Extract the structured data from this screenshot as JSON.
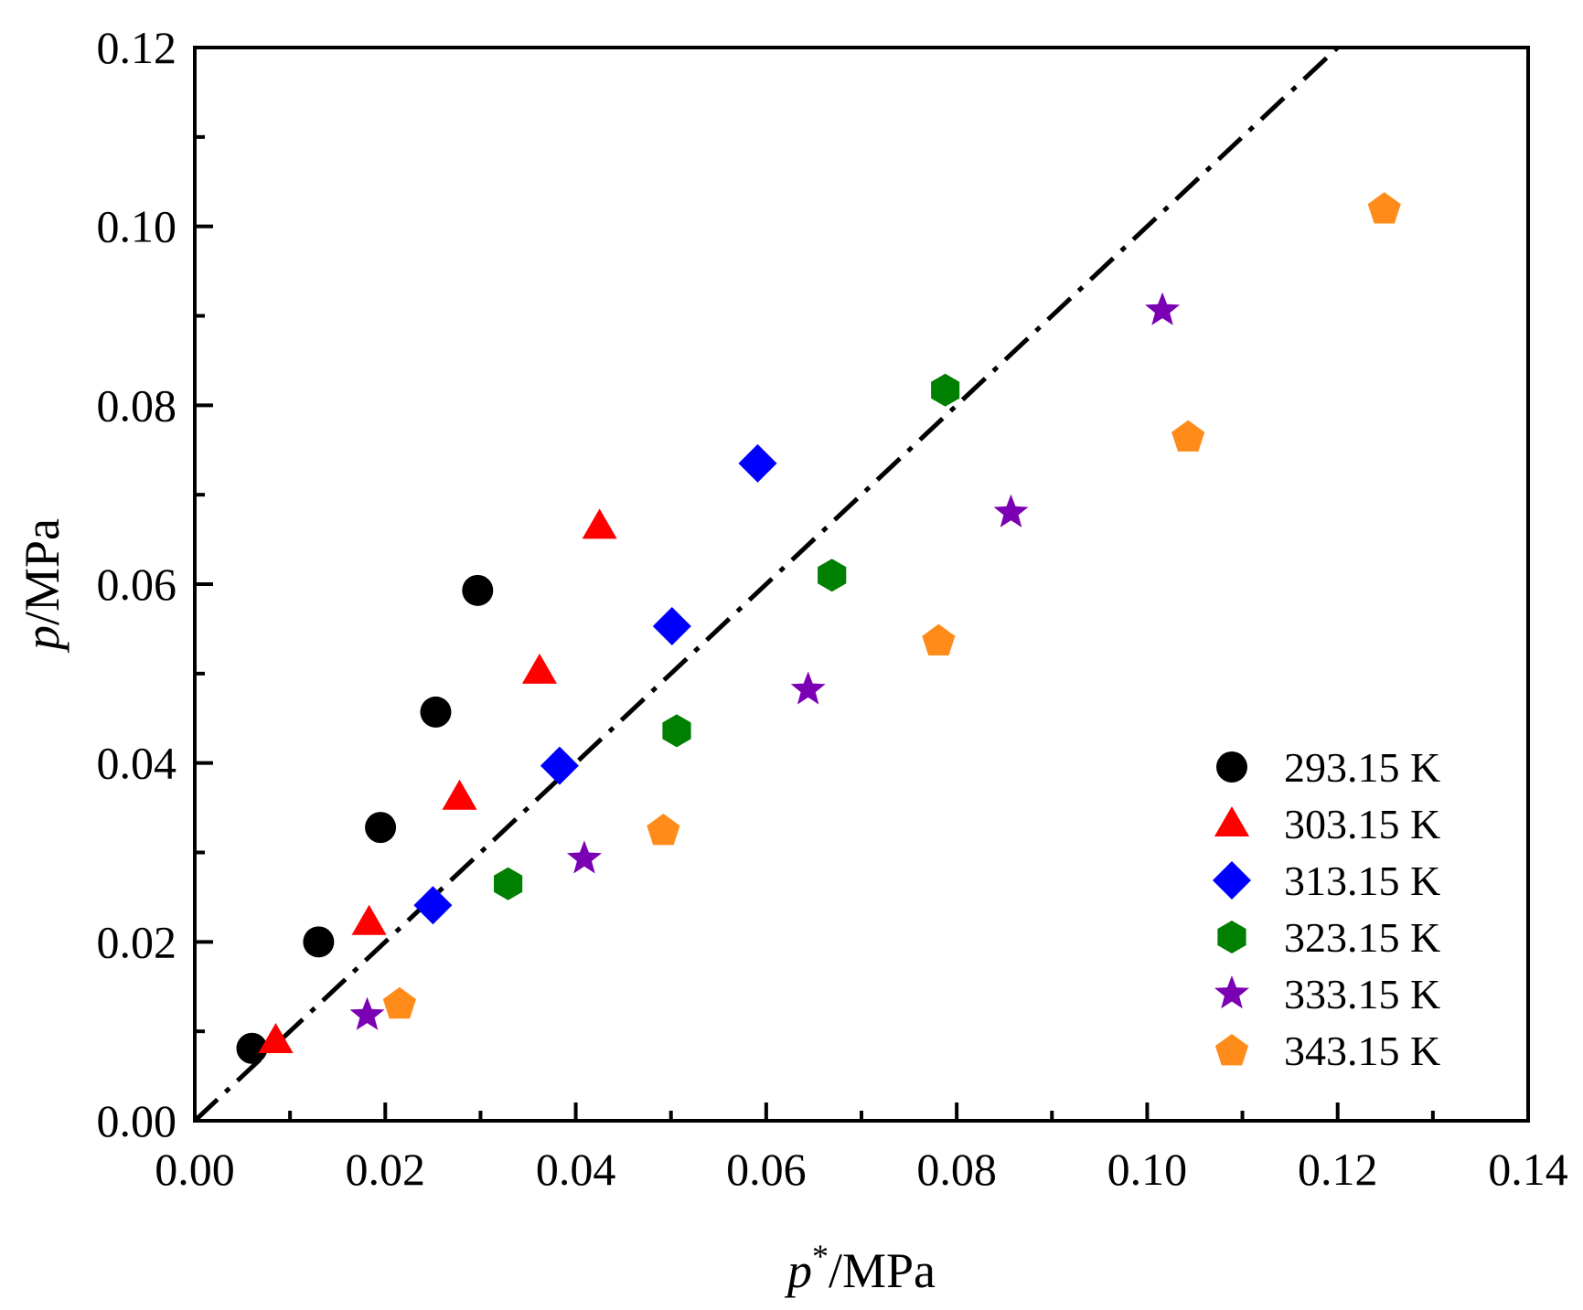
{
  "chart_data": {
    "type": "scatter",
    "title": "",
    "xlabel": {
      "var": "p",
      "sup": "*",
      "unit": "/MPa"
    },
    "ylabel": {
      "var": "p",
      "unit": "/MPa"
    },
    "xlim": [
      0,
      0.14
    ],
    "ylim": [
      0,
      0.12
    ],
    "x_ticks": [
      "0.00",
      "0.02",
      "0.04",
      "0.06",
      "0.08",
      "0.10",
      "0.12",
      "0.14"
    ],
    "y_ticks": [
      "0.00",
      "0.02",
      "0.04",
      "0.06",
      "0.08",
      "0.10",
      "0.12"
    ],
    "grid": false,
    "legend_position": "bottom-right",
    "reference_line": {
      "style": "dash-dot",
      "color": "#000000",
      "x": [
        0,
        0.12
      ],
      "y": [
        0,
        0.12
      ]
    },
    "series": [
      {
        "name": "293.15 K",
        "marker": "circle",
        "color": "#000000",
        "x": [
          0.006,
          0.013,
          0.0195,
          0.0253,
          0.0297
        ],
        "y": [
          0.0081,
          0.02,
          0.0328,
          0.0457,
          0.0593
        ]
      },
      {
        "name": "303.15 K",
        "marker": "triangle",
        "color": "#ff0000",
        "x": [
          0.0085,
          0.0183,
          0.0278,
          0.0362,
          0.0425
        ],
        "y": [
          0.009,
          0.0222,
          0.0362,
          0.0503,
          0.0665
        ]
      },
      {
        "name": "313.15 K",
        "marker": "diamond",
        "color": "#0000ff",
        "x": [
          0.025,
          0.0383,
          0.0501,
          0.0591
        ],
        "y": [
          0.0241,
          0.0397,
          0.0553,
          0.0735
        ]
      },
      {
        "name": "323.15 K",
        "marker": "hexagon",
        "color": "#008000",
        "x": [
          0.0329,
          0.0506,
          0.0669,
          0.0788
        ],
        "y": [
          0.0265,
          0.0436,
          0.061,
          0.0817
        ]
      },
      {
        "name": "333.15 K",
        "marker": "star",
        "color": "#7b00b4",
        "x": [
          0.0181,
          0.0409,
          0.0644,
          0.0857,
          0.1016
        ],
        "y": [
          0.0118,
          0.0293,
          0.0482,
          0.068,
          0.0906
        ]
      },
      {
        "name": "343.15 K",
        "marker": "pentagon",
        "color": "#ff8c1a",
        "x": [
          0.0215,
          0.0492,
          0.0781,
          0.1043,
          0.1249
        ],
        "y": [
          0.0131,
          0.0325,
          0.0537,
          0.0765,
          0.102
        ]
      }
    ]
  }
}
